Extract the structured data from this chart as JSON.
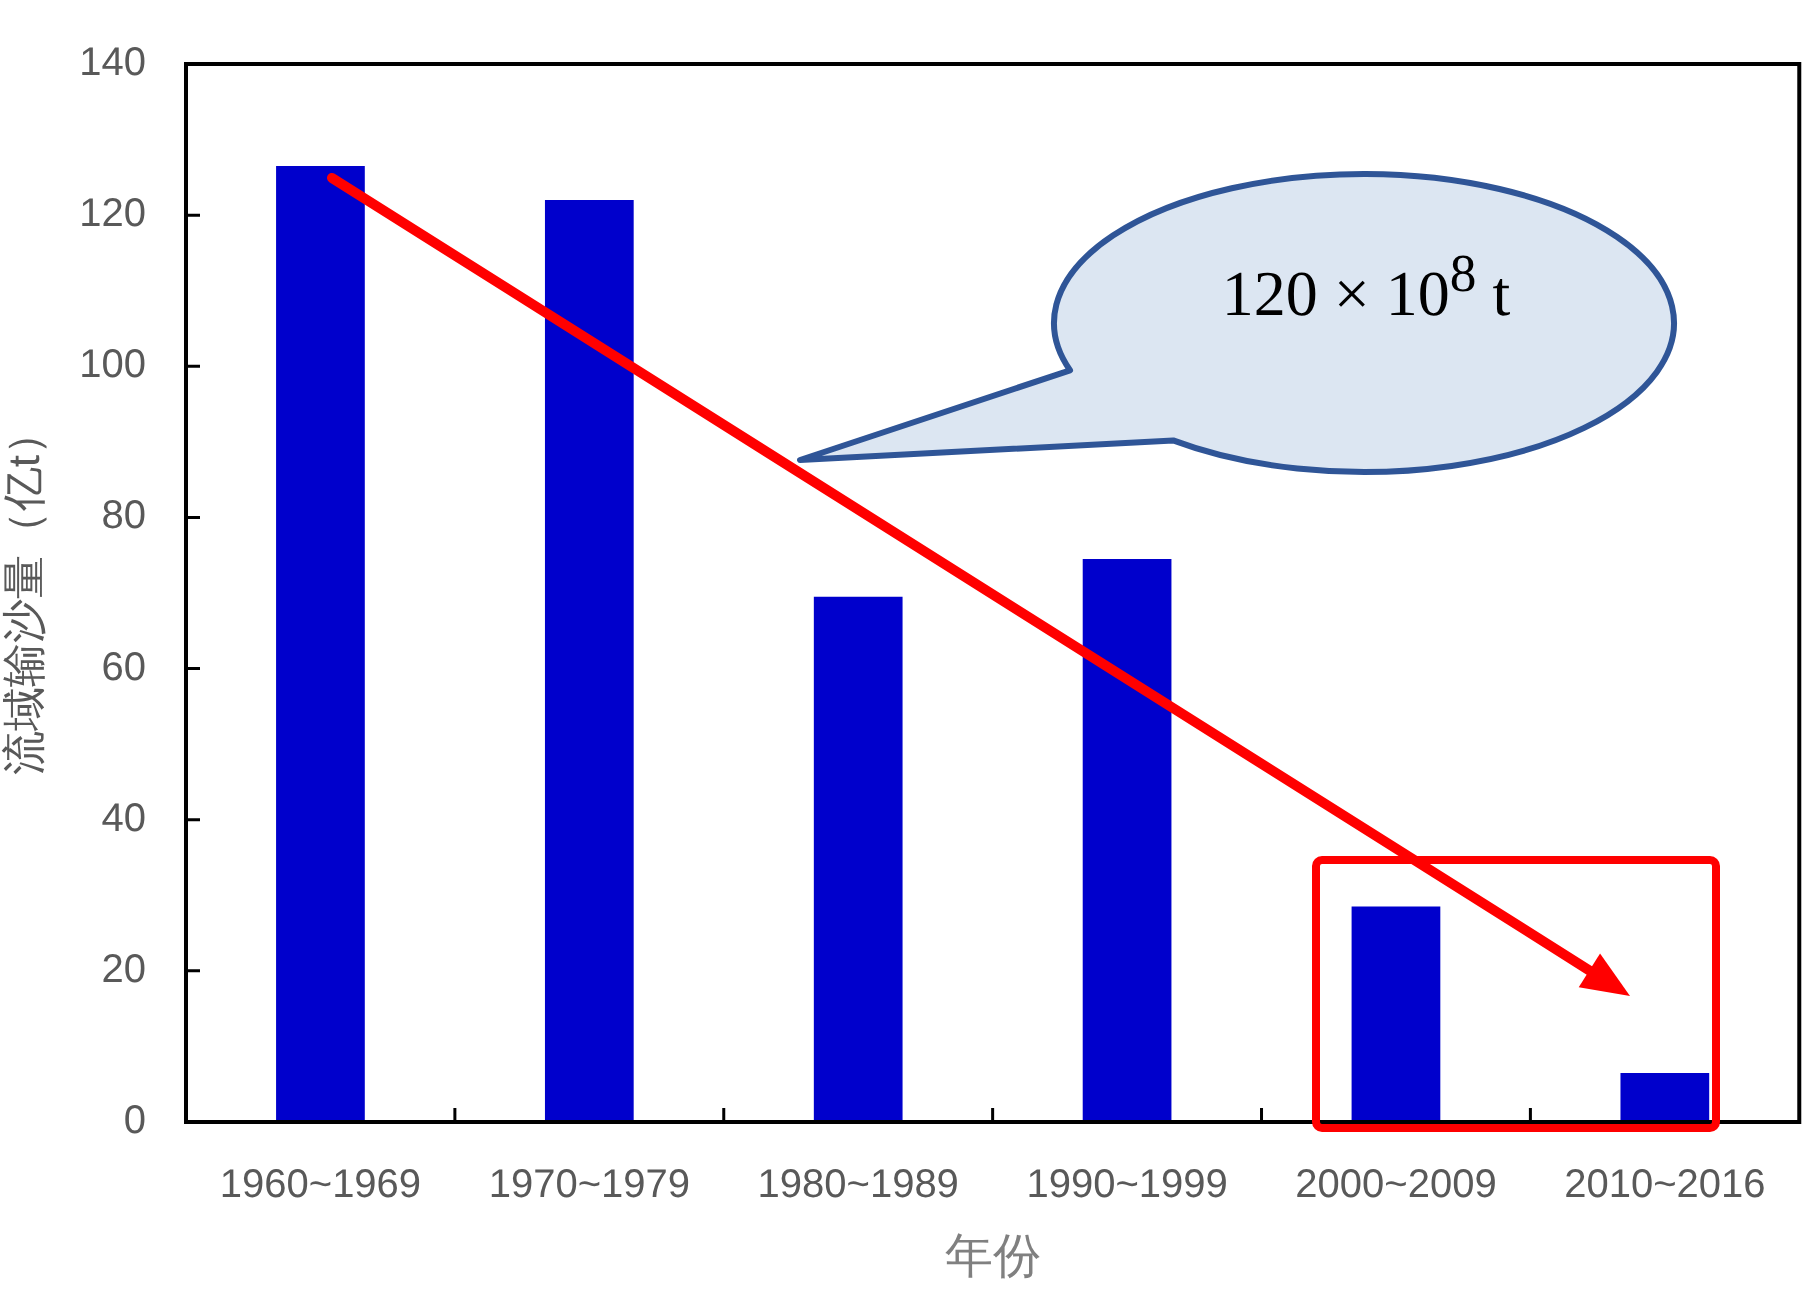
{
  "chart_data": {
    "type": "bar",
    "categories": [
      "1960~1969",
      "1970~1979",
      "1980~1989",
      "1990~1999",
      "2000~2009",
      "2010~2016"
    ],
    "values": [
      126.5,
      122,
      69.5,
      74.5,
      28.5,
      6.5
    ],
    "color": "#0000cc",
    "xlabel": "年份",
    "ylabel": "流域输沙量（亿t）",
    "ylim": [
      0,
      140
    ],
    "yticks": [
      0,
      20,
      40,
      60,
      80,
      100,
      120,
      140
    ],
    "annotations": [
      "120 × 10$^{8}$ t"
    ]
  }
}
